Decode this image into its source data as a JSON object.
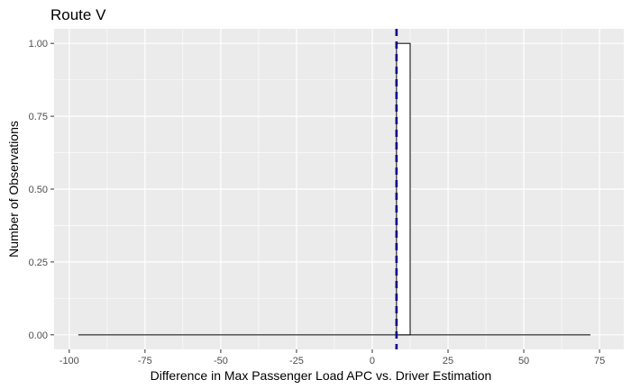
{
  "chart_data": {
    "type": "bar",
    "title": "Route V",
    "xlabel": "Difference in Max Passenger Load APC vs. Driver Estimation",
    "ylabel": "Number of Observations",
    "xlim": [
      -105,
      83
    ],
    "ylim": [
      -0.05,
      1.05
    ],
    "x_ticks": [
      -100,
      -75,
      -50,
      -25,
      0,
      25,
      50,
      75
    ],
    "x_tick_labels": [
      "-100",
      "-75",
      "-50",
      "-25",
      "0",
      "25",
      "50",
      "75"
    ],
    "y_ticks": [
      0,
      0.25,
      0.5,
      0.75,
      1.0
    ],
    "y_tick_labels": [
      "0.00",
      "0.25",
      "0.50",
      "0.75",
      "1.00"
    ],
    "histogram_range": [
      -97,
      72
    ],
    "bins": [
      {
        "x_start": 8,
        "x_end": 12.5,
        "count": 1
      }
    ],
    "reference_line": {
      "x": 8,
      "style": "dashed",
      "color": "#00008b"
    },
    "colors": {
      "panel": "#ebebeb",
      "grid": "#ffffff",
      "bar_fill": "#ffffff",
      "bar_outline": "#000000"
    },
    "grid": true,
    "legend": "none"
  }
}
